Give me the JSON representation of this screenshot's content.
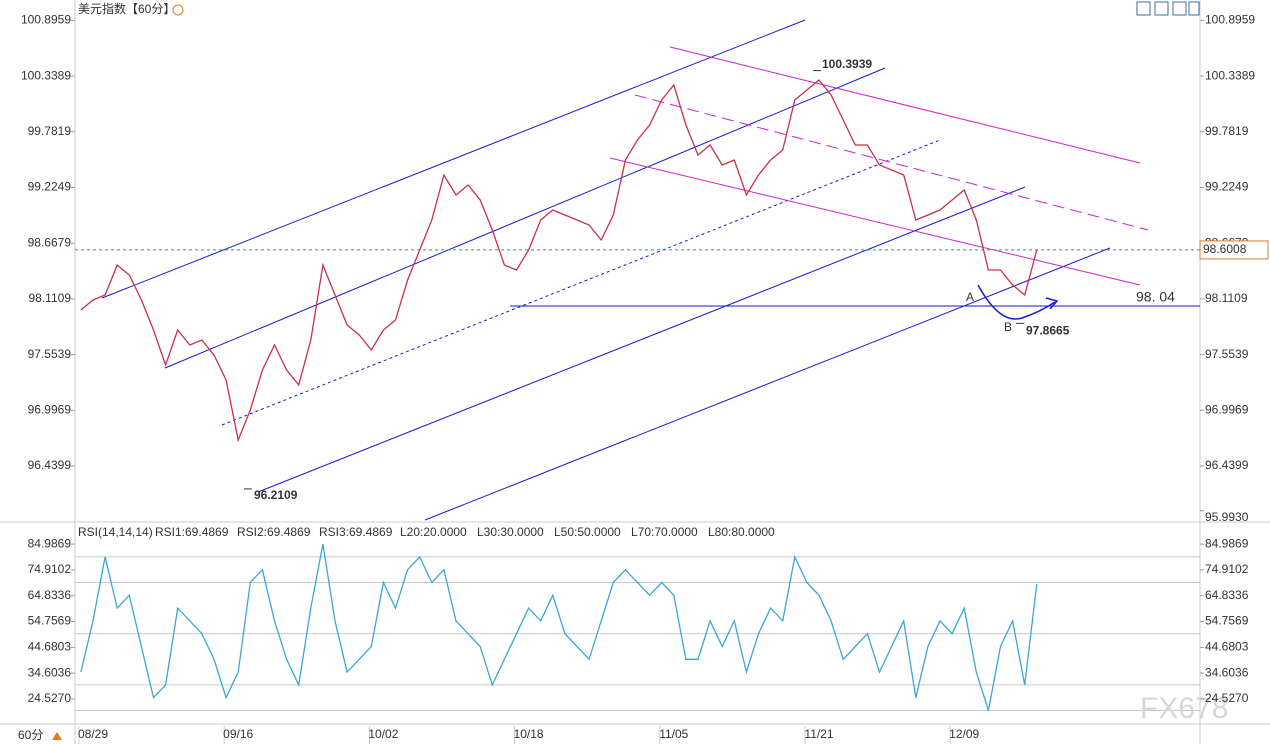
{
  "chart_data": [
    {
      "type": "line",
      "title": "美元指数【60分】",
      "categories": [
        null,
        "08/29",
        null,
        null,
        null,
        null,
        null,
        null,
        null,
        null,
        null,
        null,
        null,
        "09/16",
        null,
        null,
        null,
        null,
        null,
        null,
        null,
        null,
        null,
        null,
        null,
        "10/02",
        null,
        null,
        null,
        null,
        null,
        null,
        null,
        null,
        null,
        null,
        null,
        "10/18",
        null,
        null,
        null,
        null,
        null,
        null,
        null,
        null,
        null,
        null,
        null,
        "11/05",
        null,
        null,
        null,
        null,
        null,
        null,
        null,
        null,
        null,
        null,
        null,
        "11/21",
        null,
        null,
        null,
        null,
        null,
        null,
        null,
        null,
        null,
        null,
        null,
        "12/09",
        null,
        null,
        null,
        null,
        null,
        null
      ],
      "values": [
        98.0,
        98.1,
        98.15,
        98.45,
        98.35,
        98.1,
        97.8,
        97.45,
        97.8,
        97.65,
        97.7,
        97.55,
        97.3,
        96.7,
        97.0,
        97.4,
        97.65,
        97.4,
        97.25,
        97.7,
        98.45,
        98.15,
        97.85,
        97.75,
        97.6,
        97.8,
        97.9,
        98.3,
        98.6,
        98.9,
        99.35,
        99.15,
        99.25,
        99.1,
        98.8,
        98.45,
        98.4,
        98.6,
        98.9,
        99.0,
        98.95,
        98.9,
        98.85,
        98.7,
        98.95,
        99.5,
        99.7,
        99.85,
        100.1,
        100.25,
        99.85,
        99.55,
        99.65,
        99.45,
        99.5,
        99.15,
        99.35,
        99.5,
        99.6,
        100.1,
        100.2,
        100.3,
        100.15,
        99.9,
        99.65,
        99.65,
        99.45,
        99.4,
        99.35,
        98.9,
        98.95,
        99.0,
        99.1,
        99.2,
        98.9,
        98.4,
        98.4,
        98.25,
        98.15,
        98.6008
      ],
      "color": "#c8324a",
      "ylim": [
        95.9,
        101.1
      ],
      "yticks": [
        100.8959,
        100.3389,
        99.7819,
        99.2249,
        98.6679,
        98.1109,
        97.5539,
        96.9969,
        96.4399
      ],
      "current_price": 98.6008,
      "axis_bottom_marker": {
        "value": 95.993,
        "label": "95.9930"
      },
      "high": 100.3939,
      "low": 96.2109,
      "recent_low": 97.8665,
      "support_level": {
        "value": 98.04,
        "label": "98. 04"
      },
      "wave_labels": [
        "A",
        "B"
      ]
    },
    {
      "type": "line",
      "title": "RSI(14,14,14)",
      "legend": [
        "RSI1:69.4869",
        "RSI2:69.4869",
        "RSI3:69.4869"
      ],
      "values": [
        35,
        55,
        80,
        60,
        65,
        45,
        25,
        30,
        60,
        55,
        50,
        40,
        25,
        35,
        70,
        75,
        55,
        40,
        30,
        60,
        85,
        55,
        35,
        40,
        45,
        70,
        60,
        75,
        80,
        70,
        75,
        55,
        50,
        45,
        30,
        40,
        50,
        60,
        55,
        65,
        50,
        45,
        40,
        55,
        70,
        75,
        70,
        65,
        70,
        65,
        40,
        40,
        55,
        45,
        55,
        35,
        50,
        60,
        55,
        80,
        70,
        65,
        55,
        40,
        45,
        50,
        35,
        45,
        55,
        25,
        45,
        55,
        50,
        60,
        35,
        20,
        45,
        55,
        30,
        69.4869
      ],
      "color": "#3aa7d8",
      "ylim": [
        16.3,
        90.5
      ],
      "yticks": [
        84.9869,
        74.9102,
        64.8336,
        54.7569,
        44.6803,
        34.6036,
        {
          "value": 24.527,
          "label": "24.5270"
        }
      ],
      "levels": [
        {
          "value": 20,
          "label": "L20:20.0000"
        },
        {
          "value": 30,
          "label": "L30:30.0000"
        },
        {
          "value": 50,
          "label": "L50:50.0000"
        },
        {
          "value": 70,
          "label": "L70:70.0000"
        },
        {
          "value": 80,
          "label": "L80:80.0000"
        }
      ]
    }
  ],
  "footer": {
    "period": "60分",
    "watermark": "FX678"
  }
}
